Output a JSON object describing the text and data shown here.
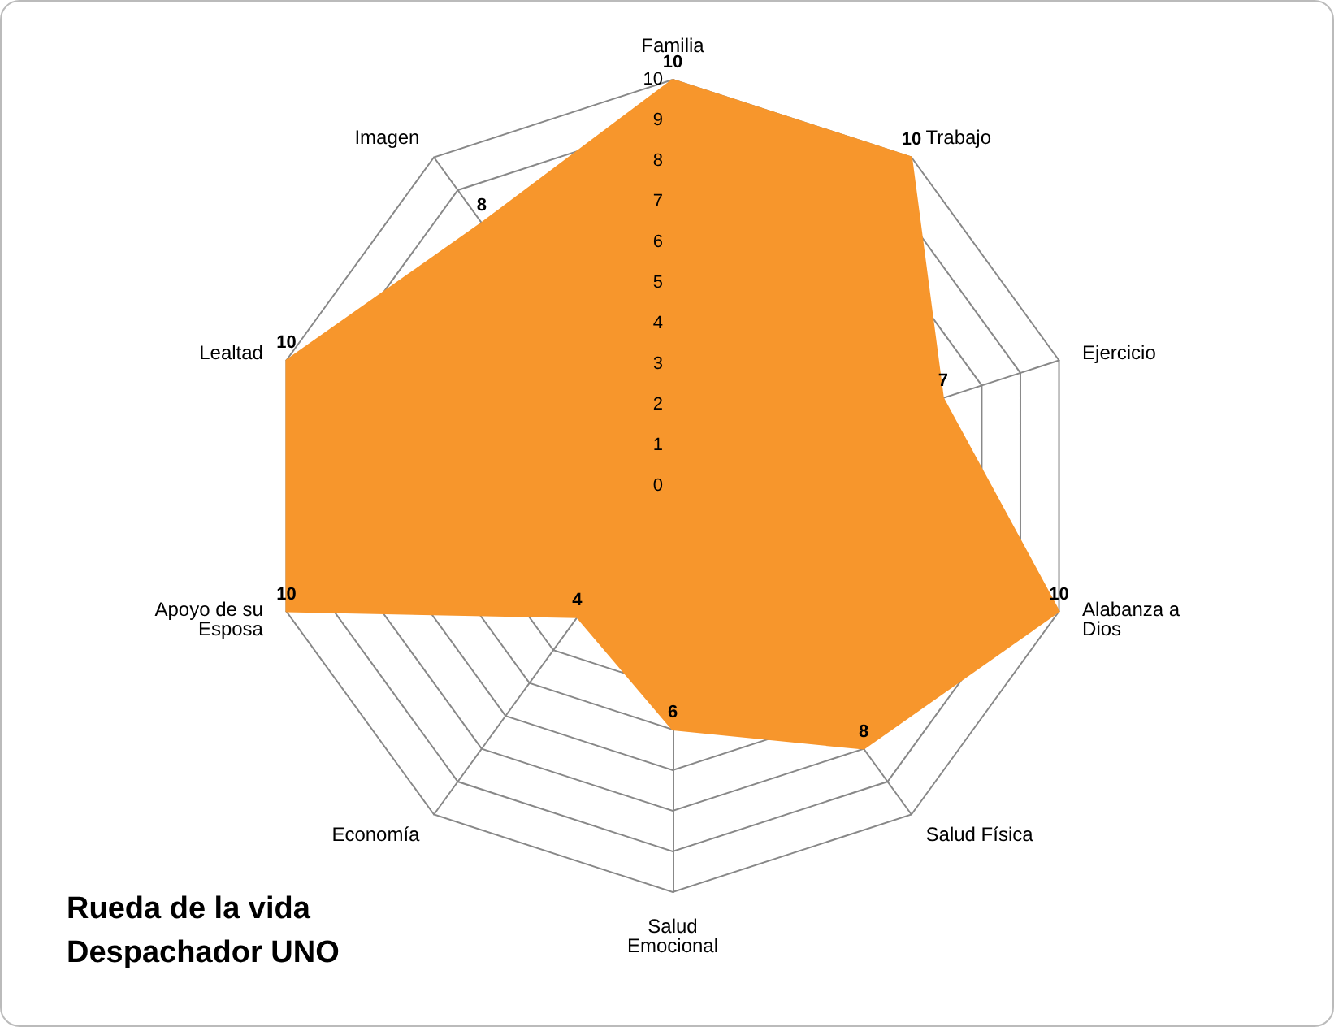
{
  "chart_data": {
    "type": "radar",
    "title": "Rueda de la vida\nDespachador UNO",
    "categories": [
      "Familia",
      "Trabajo",
      "Ejercicio",
      "Alabanza a\nDios",
      "Salud Física",
      "Salud\nEmocional",
      "Economía",
      "Apoyo de su\nEsposa",
      "Lealtad",
      "Imagen"
    ],
    "series": [
      {
        "color": "#f7962c",
        "values": [
          10,
          10,
          7,
          10,
          8,
          6,
          4,
          10,
          10,
          8
        ]
      }
    ],
    "ylim": [
      0,
      10
    ],
    "yticks": [
      0,
      1,
      2,
      3,
      4,
      5,
      6,
      7,
      8,
      9,
      10
    ],
    "data_labels": true,
    "grid": true
  }
}
